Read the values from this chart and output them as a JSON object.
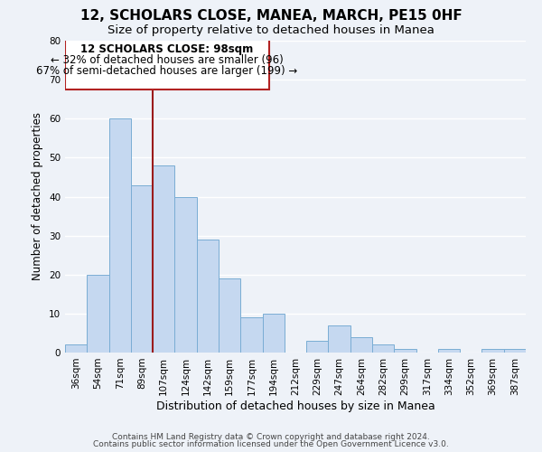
{
  "title": "12, SCHOLARS CLOSE, MANEA, MARCH, PE15 0HF",
  "subtitle": "Size of property relative to detached houses in Manea",
  "xlabel": "Distribution of detached houses by size in Manea",
  "ylabel": "Number of detached properties",
  "footer_line1": "Contains HM Land Registry data © Crown copyright and database right 2024.",
  "footer_line2": "Contains public sector information licensed under the Open Government Licence v3.0.",
  "bin_labels": [
    "36sqm",
    "54sqm",
    "71sqm",
    "89sqm",
    "107sqm",
    "124sqm",
    "142sqm",
    "159sqm",
    "177sqm",
    "194sqm",
    "212sqm",
    "229sqm",
    "247sqm",
    "264sqm",
    "282sqm",
    "299sqm",
    "317sqm",
    "334sqm",
    "352sqm",
    "369sqm",
    "387sqm"
  ],
  "bar_values": [
    2,
    20,
    60,
    43,
    48,
    40,
    29,
    19,
    9,
    10,
    0,
    3,
    7,
    4,
    2,
    1,
    0,
    1,
    0,
    1,
    1
  ],
  "bar_color": "#c5d8f0",
  "bar_edge_color": "#7aadd4",
  "ylim": [
    0,
    80
  ],
  "yticks": [
    0,
    10,
    20,
    30,
    40,
    50,
    60,
    70,
    80
  ],
  "annotation_text_line1": "12 SCHOLARS CLOSE: 98sqm",
  "annotation_text_line2": "← 32% of detached houses are smaller (96)",
  "annotation_text_line3": "67% of semi-detached houses are larger (199) →",
  "vline_color": "#9b1b1b",
  "box_edge_color": "#b22222",
  "background_color": "#eef2f8",
  "grid_color": "#ffffff",
  "title_fontsize": 11,
  "subtitle_fontsize": 9.5,
  "xlabel_fontsize": 9,
  "ylabel_fontsize": 8.5,
  "tick_fontsize": 7.5,
  "annotation_fontsize": 8.5,
  "footer_fontsize": 6.5
}
